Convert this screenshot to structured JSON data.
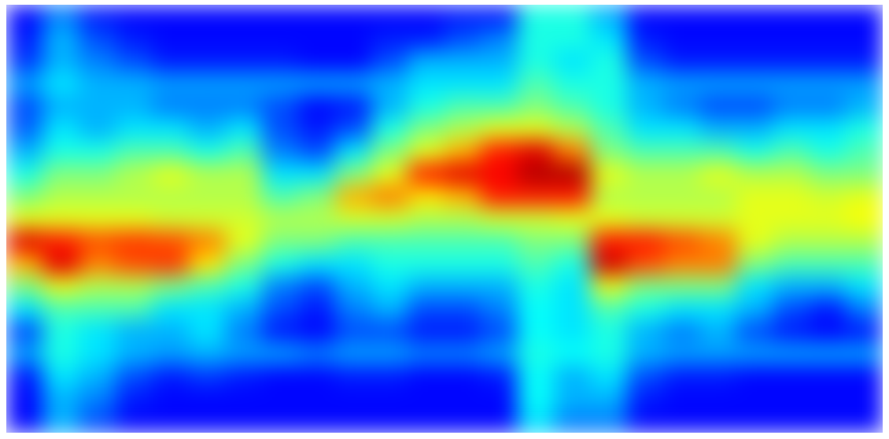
{
  "chart_data": {
    "type": "heatmap",
    "color": "jet",
    "tick_labels": false,
    "zlim": [
      0,
      1
    ],
    "cells": [
      [
        0.13,
        0.25,
        0.15,
        0.13,
        0.13,
        0.13,
        0.13,
        0.13,
        0.13,
        0.13,
        0.13,
        0.13,
        0.15,
        0.15,
        0.4,
        0.4,
        0.3,
        0.13,
        0.13,
        0.13,
        0.13,
        0.13,
        0.13,
        0.13
      ],
      [
        0.15,
        0.3,
        0.2,
        0.15,
        0.13,
        0.13,
        0.13,
        0.13,
        0.13,
        0.13,
        0.15,
        0.15,
        0.2,
        0.25,
        0.4,
        0.4,
        0.35,
        0.15,
        0.13,
        0.13,
        0.13,
        0.13,
        0.13,
        0.13
      ],
      [
        0.18,
        0.3,
        0.25,
        0.2,
        0.15,
        0.15,
        0.15,
        0.15,
        0.13,
        0.13,
        0.2,
        0.3,
        0.3,
        0.3,
        0.4,
        0.35,
        0.4,
        0.2,
        0.15,
        0.15,
        0.15,
        0.15,
        0.15,
        0.15
      ],
      [
        0.28,
        0.35,
        0.3,
        0.3,
        0.28,
        0.28,
        0.28,
        0.28,
        0.28,
        0.28,
        0.3,
        0.35,
        0.35,
        0.35,
        0.45,
        0.4,
        0.4,
        0.3,
        0.28,
        0.28,
        0.28,
        0.28,
        0.28,
        0.28
      ],
      [
        0.2,
        0.3,
        0.3,
        0.3,
        0.25,
        0.25,
        0.25,
        0.2,
        0.13,
        0.15,
        0.3,
        0.4,
        0.45,
        0.45,
        0.5,
        0.45,
        0.4,
        0.3,
        0.25,
        0.2,
        0.2,
        0.25,
        0.25,
        0.3
      ],
      [
        0.22,
        0.35,
        0.3,
        0.35,
        0.35,
        0.3,
        0.35,
        0.2,
        0.15,
        0.2,
        0.4,
        0.5,
        0.55,
        0.6,
        0.6,
        0.55,
        0.45,
        0.35,
        0.35,
        0.3,
        0.3,
        0.35,
        0.35,
        0.4
      ],
      [
        0.3,
        0.4,
        0.4,
        0.45,
        0.45,
        0.4,
        0.45,
        0.25,
        0.2,
        0.35,
        0.5,
        0.6,
        0.7,
        0.85,
        0.9,
        0.75,
        0.5,
        0.45,
        0.45,
        0.45,
        0.4,
        0.45,
        0.4,
        0.45
      ],
      [
        0.4,
        0.5,
        0.5,
        0.55,
        0.6,
        0.55,
        0.55,
        0.35,
        0.35,
        0.5,
        0.6,
        0.85,
        0.9,
        0.88,
        0.95,
        0.95,
        0.6,
        0.55,
        0.55,
        0.6,
        0.55,
        0.55,
        0.5,
        0.5
      ],
      [
        0.5,
        0.55,
        0.55,
        0.55,
        0.55,
        0.55,
        0.55,
        0.45,
        0.5,
        0.7,
        0.75,
        0.65,
        0.7,
        0.85,
        0.85,
        0.85,
        0.55,
        0.55,
        0.55,
        0.55,
        0.6,
        0.6,
        0.58,
        0.6
      ],
      [
        0.6,
        0.6,
        0.6,
        0.6,
        0.58,
        0.58,
        0.58,
        0.55,
        0.55,
        0.58,
        0.58,
        0.55,
        0.55,
        0.58,
        0.58,
        0.6,
        0.6,
        0.58,
        0.58,
        0.58,
        0.6,
        0.6,
        0.6,
        0.62
      ],
      [
        0.9,
        0.85,
        0.8,
        0.82,
        0.8,
        0.75,
        0.6,
        0.5,
        0.5,
        0.45,
        0.45,
        0.45,
        0.45,
        0.45,
        0.5,
        0.5,
        0.85,
        0.85,
        0.8,
        0.75,
        0.6,
        0.55,
        0.55,
        0.55
      ],
      [
        0.7,
        0.9,
        0.75,
        0.8,
        0.82,
        0.65,
        0.5,
        0.4,
        0.35,
        0.35,
        0.4,
        0.4,
        0.4,
        0.4,
        0.45,
        0.4,
        0.92,
        0.8,
        0.75,
        0.75,
        0.5,
        0.45,
        0.45,
        0.45
      ],
      [
        0.5,
        0.6,
        0.55,
        0.55,
        0.5,
        0.45,
        0.4,
        0.25,
        0.2,
        0.3,
        0.35,
        0.3,
        0.3,
        0.3,
        0.4,
        0.35,
        0.6,
        0.5,
        0.5,
        0.5,
        0.35,
        0.3,
        0.3,
        0.35
      ],
      [
        0.35,
        0.45,
        0.45,
        0.45,
        0.35,
        0.35,
        0.3,
        0.2,
        0.15,
        0.25,
        0.3,
        0.2,
        0.2,
        0.25,
        0.38,
        0.35,
        0.45,
        0.4,
        0.35,
        0.35,
        0.3,
        0.2,
        0.15,
        0.25
      ],
      [
        0.2,
        0.4,
        0.35,
        0.3,
        0.3,
        0.35,
        0.25,
        0.15,
        0.13,
        0.2,
        0.2,
        0.15,
        0.15,
        0.2,
        0.38,
        0.35,
        0.4,
        0.3,
        0.25,
        0.3,
        0.2,
        0.15,
        0.13,
        0.15
      ],
      [
        0.28,
        0.4,
        0.35,
        0.3,
        0.28,
        0.3,
        0.28,
        0.28,
        0.25,
        0.28,
        0.28,
        0.25,
        0.25,
        0.28,
        0.4,
        0.38,
        0.4,
        0.3,
        0.28,
        0.28,
        0.28,
        0.28,
        0.28,
        0.28
      ],
      [
        0.15,
        0.35,
        0.3,
        0.2,
        0.15,
        0.18,
        0.15,
        0.13,
        0.13,
        0.15,
        0.15,
        0.13,
        0.13,
        0.15,
        0.38,
        0.3,
        0.35,
        0.2,
        0.15,
        0.15,
        0.13,
        0.13,
        0.13,
        0.13
      ],
      [
        0.13,
        0.3,
        0.25,
        0.15,
        0.13,
        0.13,
        0.13,
        0.13,
        0.13,
        0.13,
        0.13,
        0.13,
        0.13,
        0.13,
        0.38,
        0.3,
        0.3,
        0.15,
        0.13,
        0.13,
        0.13,
        0.13,
        0.13,
        0.13
      ],
      [
        0.13,
        0.3,
        0.2,
        0.13,
        0.13,
        0.13,
        0.13,
        0.13,
        0.13,
        0.13,
        0.13,
        0.13,
        0.13,
        0.13,
        0.35,
        0.25,
        0.25,
        0.13,
        0.13,
        0.13,
        0.13,
        0.13,
        0.13,
        0.13
      ]
    ]
  }
}
